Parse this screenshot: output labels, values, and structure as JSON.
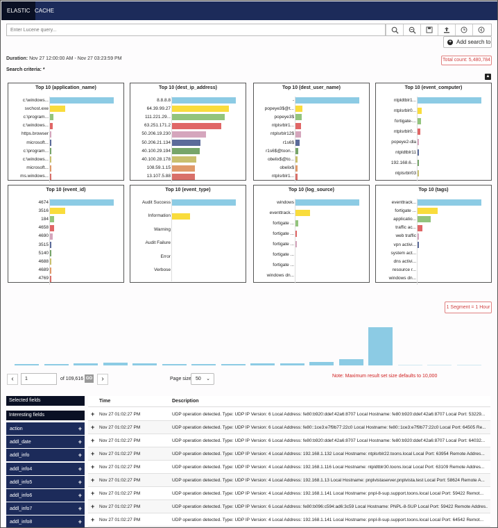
{
  "tabs": [
    {
      "label": "ELASTIC"
    },
    {
      "label": "CACHE"
    }
  ],
  "query": {
    "placeholder": "Enter Lucene query..."
  },
  "toolbar_icons": [
    "search-icon",
    "zoom-search-icon",
    "save-icon",
    "upload-icon",
    "clock-icon",
    "back-icon"
  ],
  "add_search_label": "Add search to",
  "duration_label": "Duration:",
  "duration_value": "Nov 27 12:00:00 AM -  Nov 27 03:23:59 PM",
  "criteria_label": "Search criteria: *",
  "total_count": "Total count: 5,480,784",
  "colors": {
    "blue": "#8ccbe4",
    "yellow": "#f9dc3c",
    "green": "#93c47d",
    "red": "#e06666",
    "pink": "#d5a6bd",
    "navy": "#5b6b9a",
    "darkgreen": "#76a56a",
    "olive": "#c9c06e",
    "orange": "#e09a6a",
    "rose": "#d9706a"
  },
  "panels": [
    {
      "title": "Top 10 (application_name)",
      "max": 100,
      "items": [
        {
          "label": "c:\\windows...",
          "value": 100,
          "color": "#8ccbe4"
        },
        {
          "label": "svchost.exe",
          "value": 24,
          "color": "#f9dc3c"
        },
        {
          "label": "c:\\program...",
          "value": 5,
          "color": "#93c47d"
        },
        {
          "label": "c:\\windows...",
          "value": 4,
          "color": "#e06666"
        },
        {
          "label": "https.browser",
          "value": 1,
          "color": "#d5a6bd"
        },
        {
          "label": "microsoft...",
          "value": 1,
          "color": "#5b6b9a"
        },
        {
          "label": "c:\\program...",
          "value": 1,
          "color": "#76a56a"
        },
        {
          "label": "c:\\windows...",
          "value": 1,
          "color": "#c9c06e"
        },
        {
          "label": "microsoft...",
          "value": 1,
          "color": "#e09a6a"
        },
        {
          "label": "ms.windows...",
          "value": 1,
          "color": "#d9706a"
        }
      ]
    },
    {
      "title": "Top 10 (dest_ip_address)",
      "max": 100,
      "items": [
        {
          "label": "8.8.8.8",
          "value": 100,
          "color": "#8ccbe4"
        },
        {
          "label": "64.39.99.27",
          "value": 89,
          "color": "#f9dc3c"
        },
        {
          "label": "111.221.29...",
          "value": 83,
          "color": "#93c47d"
        },
        {
          "label": "63.251.171.2",
          "value": 77,
          "color": "#e06666"
        },
        {
          "label": "50.206.19.230",
          "value": 53,
          "color": "#d5a6bd"
        },
        {
          "label": "50.206.21.134",
          "value": 45,
          "color": "#5b6b9a"
        },
        {
          "label": "40.100.29.194",
          "value": 43,
          "color": "#76a56a"
        },
        {
          "label": "40.100.28.178",
          "value": 38,
          "color": "#c9c06e"
        },
        {
          "label": "108.59.1.15",
          "value": 36,
          "color": "#e09a6a"
        },
        {
          "label": "13.107.5.88",
          "value": 36,
          "color": "#d9706a"
        }
      ]
    },
    {
      "title": "Top 10 (dest_user_name)",
      "max": 100,
      "items": [
        {
          "label": "-",
          "value": 100,
          "color": "#8ccbe4"
        },
        {
          "label": "popeye3$@t...",
          "value": 11,
          "color": "#f9dc3c"
        },
        {
          "label": "popeye3$",
          "value": 10,
          "color": "#93c47d"
        },
        {
          "label": "ntplsrblr1...",
          "value": 9,
          "color": "#e06666"
        },
        {
          "label": "ntplsrblr12$",
          "value": 9,
          "color": "#d5a6bd"
        },
        {
          "label": "r1s6$",
          "value": 7,
          "color": "#5b6b9a"
        },
        {
          "label": "r1s6$@toon...",
          "value": 4,
          "color": "#76a56a"
        },
        {
          "label": "obelix$@to...",
          "value": 3,
          "color": "#c9c06e"
        },
        {
          "label": "obelix$",
          "value": 3,
          "color": "#e09a6a"
        },
        {
          "label": "ntplsrblr1...",
          "value": 3,
          "color": "#d9706a"
        }
      ]
    },
    {
      "title": "Top 10 (event_computer)",
      "max": 100,
      "items": [
        {
          "label": "ntpldtblr1...",
          "value": 100,
          "color": "#8ccbe4"
        },
        {
          "label": "ntplsrblr0...",
          "value": 7,
          "color": "#f9dc3c"
        },
        {
          "label": "fortigate-...",
          "value": 5,
          "color": "#93c47d"
        },
        {
          "label": "ntplsrblr0...",
          "value": 4,
          "color": "#e06666"
        },
        {
          "label": "popeye2-dla",
          "value": 1,
          "color": "#d5a6bd"
        },
        {
          "label": "ntpldtblr11",
          "value": 1,
          "color": "#5b6b9a"
        },
        {
          "label": "192.168.6....",
          "value": 1,
          "color": "#76a56a"
        },
        {
          "label": "ntplsrblr03",
          "value": 1,
          "color": "#c9c06e"
        }
      ]
    },
    {
      "title": "Top 10 (event_id)",
      "max": 100,
      "items": [
        {
          "label": "4674",
          "value": 100,
          "color": "#8ccbe4"
        },
        {
          "label": "3516",
          "value": 24,
          "color": "#f9dc3c"
        },
        {
          "label": "184",
          "value": 6,
          "color": "#93c47d"
        },
        {
          "label": "4658",
          "value": 7,
          "color": "#e06666"
        },
        {
          "label": "4690",
          "value": 4,
          "color": "#d5a6bd"
        },
        {
          "label": "3515",
          "value": 1,
          "color": "#5b6b9a"
        },
        {
          "label": "5140",
          "value": 1,
          "color": "#76a56a"
        },
        {
          "label": "4688",
          "value": 1,
          "color": "#c9c06e"
        },
        {
          "label": "4689",
          "value": 1,
          "color": "#e09a6a"
        },
        {
          "label": "4769",
          "value": 1,
          "color": "#d9706a"
        }
      ]
    },
    {
      "title": "Top 10 (event_type)",
      "max": 100,
      "items": [
        {
          "label": "Audit Success",
          "value": 100,
          "color": "#8ccbe4"
        },
        {
          "label": "Information",
          "value": 28,
          "color": "#f9dc3c"
        },
        {
          "label": "Warning",
          "value": 0,
          "color": "#93c47d"
        },
        {
          "label": "Audit Failure",
          "value": 0,
          "color": "#e06666"
        },
        {
          "label": "Error",
          "value": 0,
          "color": "#d5a6bd"
        },
        {
          "label": "Verbose",
          "value": 0,
          "color": "#5b6b9a"
        }
      ]
    },
    {
      "title": "Top 10 (log_source)",
      "max": 100,
      "items": [
        {
          "label": "windows",
          "value": 100,
          "color": "#8ccbe4"
        },
        {
          "label": "eventtrack...",
          "value": 23,
          "color": "#f9dc3c"
        },
        {
          "label": "fortigate ...",
          "value": 4,
          "color": "#93c47d"
        },
        {
          "label": "fortigate ...",
          "value": 1,
          "color": "#e06666"
        },
        {
          "label": "fortigate ...",
          "value": 1,
          "color": "#d5a6bd"
        },
        {
          "label": "fortigate ...",
          "value": 0,
          "color": "#5b6b9a"
        },
        {
          "label": "fortigate ...",
          "value": 0,
          "color": "#76a56a"
        },
        {
          "label": "windows dn...",
          "value": 0,
          "color": "#c9c06e"
        }
      ]
    },
    {
      "title": "Top 10 (tags)",
      "max": 100,
      "items": [
        {
          "label": "eventtrack...",
          "value": 100,
          "color": "#8ccbe4"
        },
        {
          "label": "fortigate ...",
          "value": 32,
          "color": "#f9dc3c"
        },
        {
          "label": "applicatio...",
          "value": 21,
          "color": "#93c47d"
        },
        {
          "label": "traffic ac...",
          "value": 8,
          "color": "#e06666"
        },
        {
          "label": "web traffic",
          "value": 2,
          "color": "#d5a6bd"
        },
        {
          "label": "vpn activi...",
          "value": 1,
          "color": "#5b6b9a"
        },
        {
          "label": "system act...",
          "value": 0,
          "color": "#76a56a"
        },
        {
          "label": "dns activi...",
          "value": 0,
          "color": "#c9c06e"
        },
        {
          "label": "resource r...",
          "value": 0,
          "color": "#e09a6a"
        },
        {
          "label": "windows dn...",
          "value": 0,
          "color": "#d9706a"
        }
      ]
    }
  ],
  "segment_label": "1 Segment = 1 Hour",
  "histogram_values": [
    3,
    3,
    4,
    6,
    4,
    3,
    3,
    3,
    4,
    4,
    7,
    13,
    77,
    2,
    1,
    1
  ],
  "pager": {
    "page": "1",
    "of_label": "of",
    "total_pages": "109,616",
    "go": "GO",
    "page_size_label": "Page size",
    "page_size": "50"
  },
  "note": "Note: Maximum result set size defaults to 10,000",
  "sidebar": {
    "selected_label": "Selected fields",
    "interesting_label": "Interesting fields",
    "fields": [
      "action",
      "addl_date",
      "addl_info",
      "addl_info4",
      "addl_info5",
      "addl_info6",
      "addl_info7",
      "addl_info8"
    ]
  },
  "table": {
    "col_time": "Time",
    "col_desc": "Description",
    "rows": [
      {
        "time": "Nov 27 01:02:27 PM",
        "desc": "UDP operation detected. Type: UDP IP Version: 6 Local Address: fe80:b920:ddef:42a6:8707 Local Hostname: fe80:b920:ddef:42a6:8707 Local Port: 53229..."
      },
      {
        "time": "Nov 27 01:02:27 PM",
        "desc": "UDP operation detected. Type: UDP IP Version: 6 Local Address: fe80::1ce3:e7f9b77:22c0 Local Hostname: fe80::1ce3:e7f9b77:22c0 Local Port: 64505 Re..."
      },
      {
        "time": "Nov 27 01:02:27 PM",
        "desc": "UDP operation detected. Type: UDP IP Version: 6 Local Address: fe80:b920:ddef:42a6:8707 Local Hostname: fe80:b920:ddef:42a6:8707 Local Port: 64032..."
      },
      {
        "time": "Nov 27 01:02:27 PM",
        "desc": "UDP operation detected. Type: UDP IP Version: 4 Local Address: 192.168.1.132 Local Hostname: ntplsrblr22.toons.local Local Port: 63954 Remote Addres..."
      },
      {
        "time": "Nov 27 01:02:27 PM",
        "desc": "UDP operation detected. Type: UDP IP Version: 4 Local Address: 192.168.1.116 Local Hostname: ntpldtblr30.toons.local Local Port: 63109 Remote Addres..."
      },
      {
        "time": "Nov 27 01:02:27 PM",
        "desc": "UDP operation detected. Type: UDP IP Version: 4 Local Address: 192.168.1.13 Local Hostname: pnplvistaserver.pnplvista.test Local Port: 58624 Remote A..."
      },
      {
        "time": "Nov 27 01:02:27 PM",
        "desc": "UDP operation detected. Type: UDP IP Version: 4 Local Address: 192.168.1.141 Local Hostname: pnpl-8-sup.support.toons.local Local Port: 59422 Remot..."
      },
      {
        "time": "Nov 27 01:02:27 PM",
        "desc": "UDP operation detected. Type: UDP IP Version: 6 Local Address: fe80:b096:c594:ad6:3c59 Local Hostname: PNPL-8-SUP Local Port: 59422 Remote Addres..."
      },
      {
        "time": "Nov 27 01:02:27 PM",
        "desc": "UDP operation detected. Type: UDP IP Version: 4 Local Address: 192.168.1.141 Local Hostname: pnpl-8-sup.support.toons.local Local Port: 64542 Remot..."
      }
    ]
  }
}
